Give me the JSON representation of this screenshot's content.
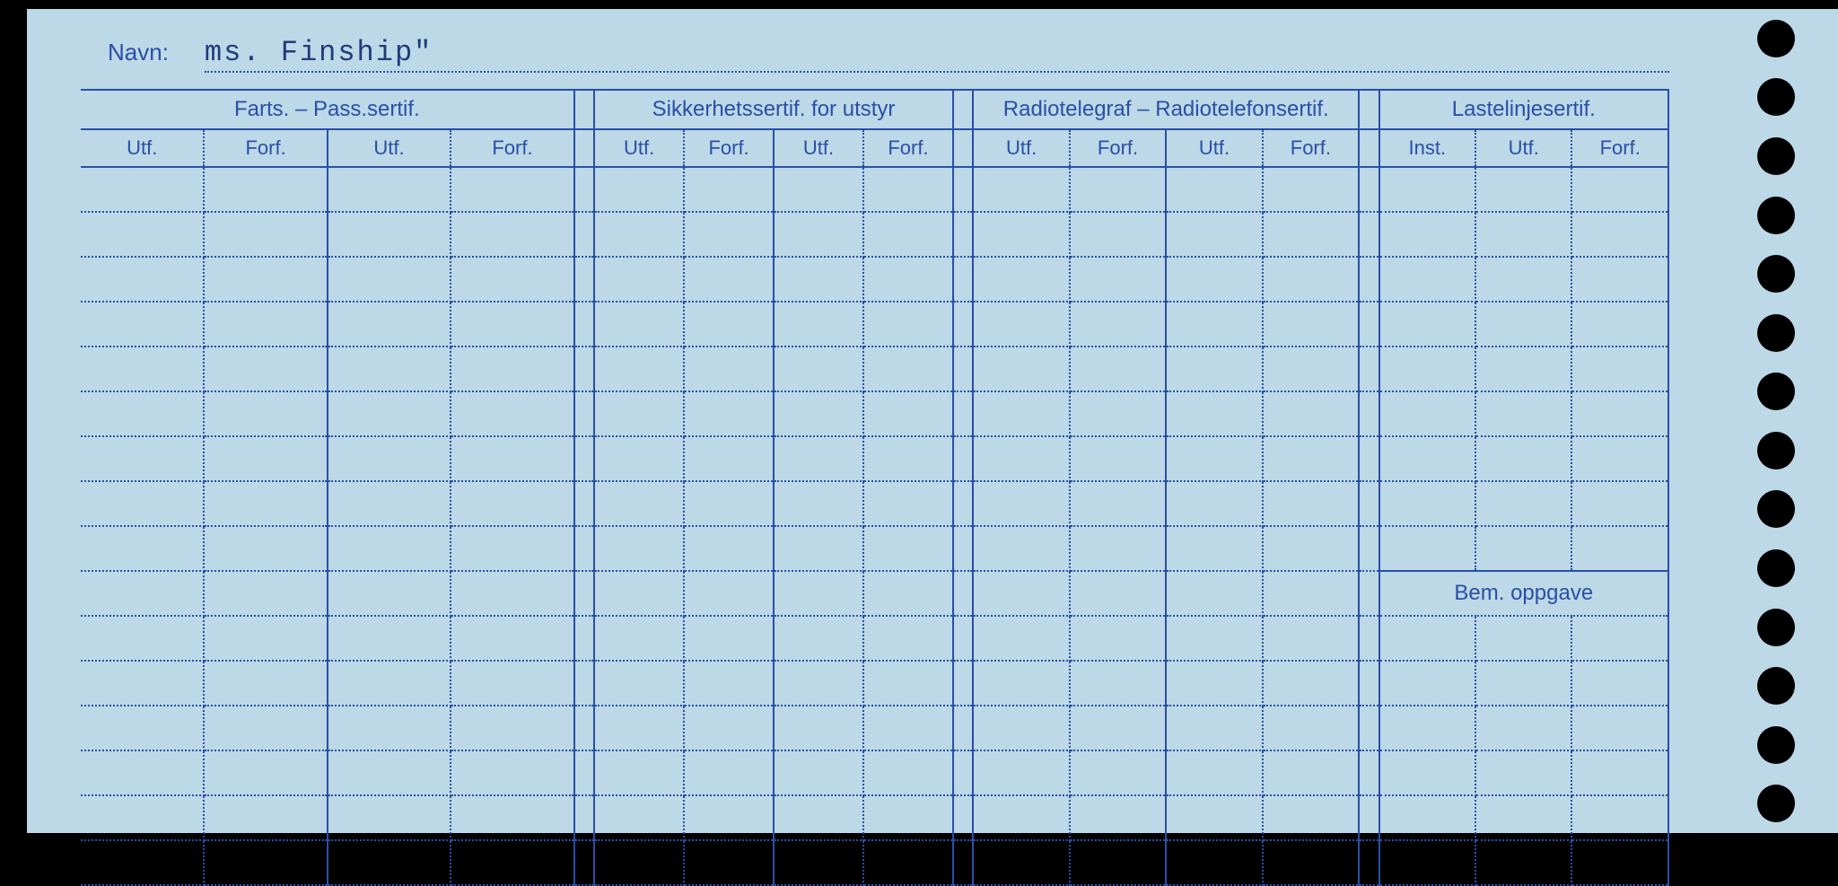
{
  "card": {
    "background_color": "#bdd8e6",
    "line_color": "#2a4fa8",
    "text_color": "#2a4fa8",
    "typewriter_color": "#223a7a"
  },
  "navn": {
    "label": "Navn:",
    "value": "ms. Finship\""
  },
  "groups": {
    "g1": "Farts. – Pass.sertif.",
    "g2": "Sikkerhetssertif. for utstyr",
    "g3": "Radiotelegraf – Radiotelefonsertif.",
    "g4": "Lastelinjesertif."
  },
  "subheaders": {
    "utf": "Utf.",
    "forf": "Forf.",
    "inst": "Inst."
  },
  "bem": {
    "label": "Bem. oppgave"
  },
  "layout": {
    "data_rows_before_bem": 9,
    "data_rows_after_bem": 6,
    "punch_holes": 14,
    "group1_cols": 4,
    "group2_cols": 4,
    "group3_cols": 4,
    "group4_cols": 3,
    "col_width_main": 104,
    "col_width_g2": 80,
    "col_width_g3": 86,
    "col_width_g4": 86,
    "gap_width": 18,
    "header_fontsize": 24,
    "sub_fontsize": 22,
    "navn_label_fontsize": 26,
    "navn_value_fontsize": 32
  }
}
